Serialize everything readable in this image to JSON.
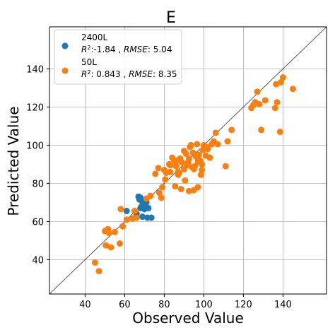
{
  "chart_data": {
    "type": "scatter",
    "title": "E",
    "xlabel": "Observed Value",
    "ylabel": "Predicted Value",
    "xlim": [
      22,
      162
    ],
    "ylim": [
      22,
      162
    ],
    "xticks": [
      40,
      60,
      80,
      100,
      120,
      140
    ],
    "yticks": [
      40,
      60,
      80,
      100,
      120,
      140
    ],
    "grid": true,
    "legend_position": "top-left",
    "reference_line": "y = x",
    "series": [
      {
        "name": "2400L",
        "stat_line": {
          "r2_label": "R",
          "r2_sup": "2",
          "r2_value": ":-1.84 , ",
          "rmse_label": "RMSE",
          "rmse_value": ": 5.04"
        },
        "color": "#1f77b4",
        "points": [
          [
            61,
            65.5
          ],
          [
            66,
            64
          ],
          [
            67,
            73
          ],
          [
            67.5,
            71.5
          ],
          [
            68,
            72.5
          ],
          [
            68.5,
            68
          ],
          [
            69,
            70.5
          ],
          [
            69.5,
            69
          ],
          [
            70,
            66.5
          ],
          [
            70.5,
            68.5
          ],
          [
            71,
            70
          ],
          [
            69,
            62.5
          ],
          [
            71.5,
            62
          ],
          [
            73.5,
            62
          ],
          [
            72,
            67
          ],
          [
            68,
            67
          ]
        ]
      },
      {
        "name": "50L",
        "stat_line": {
          "r2_label": "R",
          "r2_sup": "2",
          "r2_value": ": 0.843 , ",
          "rmse_label": "RMSE",
          "rmse_value": ": 8.35"
        },
        "color": "#ff7f0e",
        "points": [
          [
            45,
            38.5
          ],
          [
            47,
            34
          ],
          [
            50,
            55
          ],
          [
            50.5,
            47.5
          ],
          [
            51.5,
            56
          ],
          [
            52,
            54
          ],
          [
            53,
            46.5
          ],
          [
            55,
            54.5
          ],
          [
            57.5,
            48.5
          ],
          [
            58,
            66.5
          ],
          [
            59,
            57.5
          ],
          [
            61,
            61
          ],
          [
            64,
            61.5
          ],
          [
            65,
            65.5
          ],
          [
            66,
            62
          ],
          [
            71,
            72
          ],
          [
            73,
            73.5
          ],
          [
            75.5,
            85
          ],
          [
            77,
            88
          ],
          [
            77.5,
            75
          ],
          [
            78.5,
            72.5
          ],
          [
            79,
            78
          ],
          [
            80.5,
            82
          ],
          [
            81,
            85.5
          ],
          [
            82.5,
            90
          ],
          [
            83,
            89.5
          ],
          [
            84,
            93.5
          ],
          [
            85,
            92
          ],
          [
            85.5,
            78.5
          ],
          [
            86,
            89
          ],
          [
            86.5,
            92
          ],
          [
            87,
            84.5
          ],
          [
            87.5,
            85.5
          ],
          [
            88.5,
            77
          ],
          [
            89,
            91
          ],
          [
            90,
            87.5
          ],
          [
            90.5,
            81.5
          ],
          [
            91,
            95.5
          ],
          [
            91.5,
            89.5
          ],
          [
            92,
            91
          ],
          [
            92.5,
            93
          ],
          [
            93,
            99
          ],
          [
            93.5,
            100
          ],
          [
            94,
            88.5
          ],
          [
            94.5,
            96
          ],
          [
            95,
            76.5
          ],
          [
            95.5,
            89
          ],
          [
            96,
            94
          ],
          [
            96.5,
            100.5
          ],
          [
            97,
            91.5
          ],
          [
            97.5,
            95
          ],
          [
            98,
            92
          ],
          [
            98.5,
            84.5
          ],
          [
            99,
            90
          ],
          [
            99.5,
            97.5
          ],
          [
            100,
            100
          ],
          [
            101,
            94.5
          ],
          [
            101.5,
            99
          ],
          [
            102,
            98
          ],
          [
            103,
            93.5
          ],
          [
            104,
            100.5
          ],
          [
            105,
            102
          ],
          [
            106,
            106.5
          ],
          [
            107,
            100.5
          ],
          [
            111,
            89
          ],
          [
            112,
            102
          ],
          [
            114,
            108
          ],
          [
            124,
            119.5
          ],
          [
            125,
            121
          ],
          [
            126,
            122.5
          ],
          [
            127,
            128
          ],
          [
            128,
            121.5
          ],
          [
            129,
            108
          ],
          [
            131,
            123.5
          ],
          [
            136,
            119.5
          ],
          [
            136.5,
            132
          ],
          [
            137,
            122.5
          ],
          [
            138.5,
            107
          ],
          [
            139,
            133
          ],
          [
            140,
            135.5
          ],
          [
            145,
            129.5
          ],
          [
            90,
            97
          ],
          [
            88,
            93
          ],
          [
            80,
            87
          ],
          [
            92.5,
            76
          ],
          [
            97,
            78
          ],
          [
            99,
            87
          ],
          [
            95,
            87.5
          ],
          [
            83,
            86
          ],
          [
            87,
            86
          ]
        ]
      }
    ]
  }
}
